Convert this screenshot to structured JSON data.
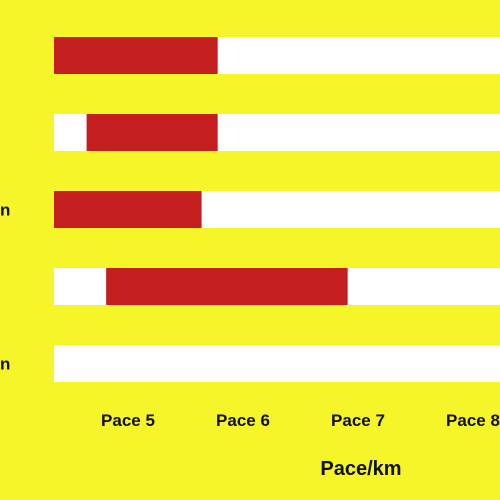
{
  "chart_data": {
    "type": "bar",
    "orientation": "horizontal-range",
    "xlabel": "Pace/km",
    "tick_labels": [
      "Pace 5",
      "Pace 6",
      "Pace 7",
      "Pace 8"
    ],
    "row_labels": [
      "",
      "",
      "n",
      "",
      "n"
    ],
    "rows": [
      {
        "start": 4.0,
        "end": 5.78
      },
      {
        "start": 4.64,
        "end": 5.78
      },
      {
        "start": 4.0,
        "end": 5.64
      },
      {
        "start": 4.81,
        "end": 6.91
      },
      {
        "start": null,
        "end": null
      }
    ],
    "grid": false,
    "legend": "none",
    "colors": {
      "background": "#f5f52a",
      "track": "#ffffff",
      "bar": "#c41e1e"
    }
  }
}
